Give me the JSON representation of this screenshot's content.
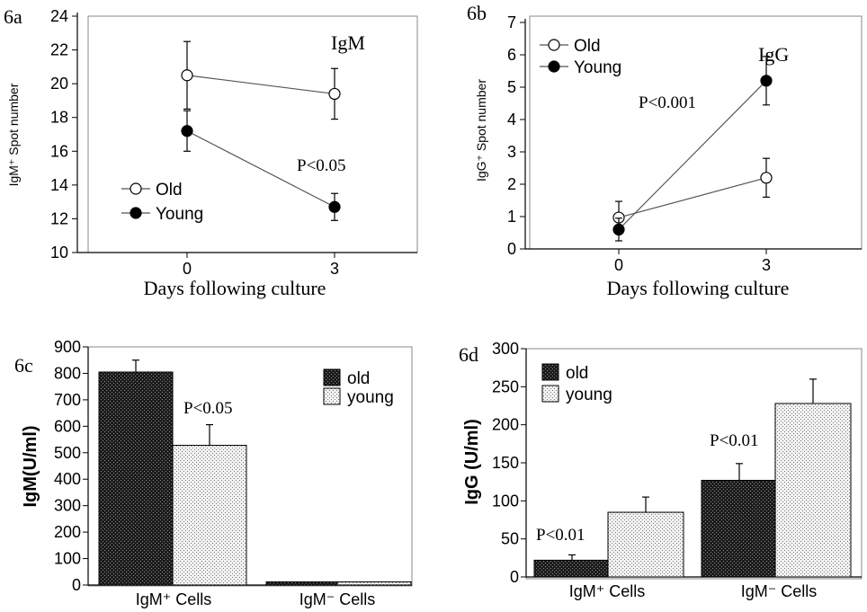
{
  "chart_data": [
    {
      "id": "6a",
      "type": "line",
      "panel_label": "6a",
      "title": "IgM",
      "xlabel": "Days following culture",
      "ylabel": "IgM⁺ Spot number",
      "x": [
        0,
        3
      ],
      "xticks": [
        "0",
        "3"
      ],
      "ylim": [
        10,
        24
      ],
      "yticks": [
        "10",
        "12",
        "14",
        "16",
        "18",
        "20",
        "22",
        "24"
      ],
      "legend_position": "bottom-left",
      "annotation": "P<0.05",
      "series": [
        {
          "name": "Old",
          "marker": "open",
          "values": [
            20.5,
            19.4
          ],
          "errors": [
            2.0,
            1.5
          ]
        },
        {
          "name": "Young",
          "marker": "filled",
          "values": [
            17.2,
            12.7
          ],
          "errors": [
            1.2,
            0.8
          ]
        }
      ]
    },
    {
      "id": "6b",
      "type": "line",
      "panel_label": "6b",
      "title": "IgG",
      "xlabel": "Days following culture",
      "ylabel": "IgG⁺ Spot number",
      "x": [
        0,
        3
      ],
      "xticks": [
        "0",
        "3"
      ],
      "ylim": [
        0,
        7
      ],
      "yticks": [
        "0",
        "1",
        "2",
        "3",
        "4",
        "5",
        "6",
        "7"
      ],
      "legend_position": "top-left",
      "annotation": "P<0.001",
      "series": [
        {
          "name": "Old",
          "marker": "open",
          "values": [
            0.97,
            2.2
          ],
          "errors": [
            0.5,
            0.6
          ]
        },
        {
          "name": "Young",
          "marker": "filled",
          "values": [
            0.6,
            5.2
          ],
          "errors": [
            0.35,
            0.75
          ]
        }
      ]
    },
    {
      "id": "6c",
      "type": "bar",
      "panel_label": "6c",
      "xlabel": "",
      "ylabel": "IgM(U/ml)",
      "categories": [
        "IgM⁺ Cells",
        "IgM⁻ Cells"
      ],
      "ylim": [
        0,
        900
      ],
      "yticks": [
        "0",
        "100",
        "200",
        "300",
        "400",
        "500",
        "600",
        "700",
        "800",
        "900"
      ],
      "legend_position": "top-right",
      "annotations": [
        {
          "text": "P<0.05",
          "category": 0
        }
      ],
      "series": [
        {
          "name": "old",
          "pattern": "dark",
          "values": [
            805,
            12
          ],
          "errors": [
            45,
            0
          ]
        },
        {
          "name": "young",
          "pattern": "light",
          "values": [
            528,
            12
          ],
          "errors": [
            78,
            0
          ]
        }
      ]
    },
    {
      "id": "6d",
      "type": "bar",
      "panel_label": "6d",
      "xlabel": "",
      "ylabel": "IgG (U/ml)",
      "categories": [
        "IgM⁺ Cells",
        "IgM⁻ Cells"
      ],
      "ylim": [
        0,
        300
      ],
      "yticks": [
        "0",
        "50",
        "100",
        "150",
        "200",
        "250",
        "300"
      ],
      "legend_position": "top-left",
      "annotations": [
        {
          "text": "P<0.01",
          "category": 0
        },
        {
          "text": "P<0.01",
          "category": 1
        }
      ],
      "series": [
        {
          "name": "old",
          "pattern": "dark",
          "values": [
            22,
            127
          ],
          "errors": [
            7,
            22
          ]
        },
        {
          "name": "young",
          "pattern": "light",
          "values": [
            85,
            228
          ],
          "errors": [
            20,
            32
          ]
        }
      ]
    }
  ]
}
